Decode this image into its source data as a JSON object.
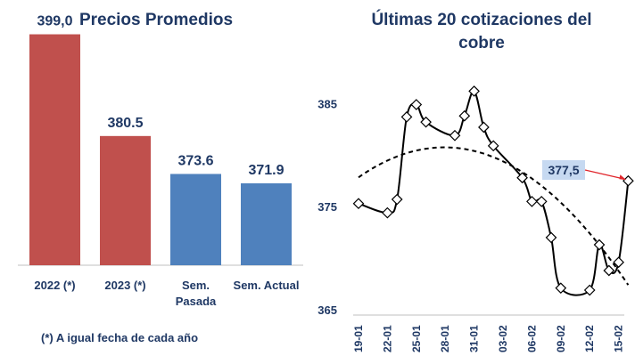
{
  "chart_data": [
    {
      "type": "bar",
      "title": "Precios Promedios",
      "categories": [
        "2022 (*)",
        "2023 (*)",
        "Sem. Pasada",
        "Sem. Actual"
      ],
      "category_lines": [
        [
          "2022 (*)"
        ],
        [
          "2023 (*)"
        ],
        [
          "Sem.",
          "Pasada"
        ],
        [
          "Sem. Actual"
        ]
      ],
      "values": [
        399.0,
        380.5,
        373.6,
        371.9
      ],
      "value_labels": [
        "399,0",
        "380.5",
        "373.6",
        "371.9"
      ],
      "colors": [
        "#c0504d",
        "#c0504d",
        "#4f81bd",
        "#4f81bd"
      ],
      "ylim": [
        357,
        402
      ],
      "footnote": "(*) A igual fecha de cada año"
    },
    {
      "type": "line",
      "title": "Últimas 20 cotizaciones del cobre",
      "title_lines": [
        "Últimas 20 cotizaciones del",
        "cobre"
      ],
      "xlabel": "",
      "ylabel": "",
      "ylim": [
        365,
        389
      ],
      "yticks": [
        365,
        375,
        385
      ],
      "x": [
        "19-01",
        "20-01",
        "21-01",
        "22-01",
        "23-01",
        "24-01",
        "25-01",
        "26-01",
        "27-01",
        "28-01",
        "29-01",
        "30-01",
        "31-01",
        "01-02",
        "02-02",
        "03-02",
        "04-02",
        "05-02",
        "06-02",
        "07-02",
        "08-02",
        "09-02",
        "10-02",
        "11-02",
        "12-02",
        "13-02",
        "14-02",
        "15-02",
        "16-02"
      ],
      "xticks": [
        "19-01",
        "22-01",
        "25-01",
        "28-01",
        "31-01",
        "03-02",
        "06-02",
        "09-02",
        "12-02",
        "15-02"
      ],
      "series": [
        {
          "values": [
            375.3,
            null,
            null,
            374.4,
            375.7,
            383.7,
            384.9,
            383.2,
            null,
            null,
            381.9,
            383.8,
            386.2,
            382.7,
            380.9,
            null,
            null,
            377.8,
            375.5,
            375.5,
            372.0,
            367.1,
            null,
            null,
            366.9,
            371.3,
            368.8,
            369.6,
            377.5
          ],
          "color": "#000000"
        }
      ],
      "trend": {
        "style": "dashed",
        "color": "#000000",
        "type": "polynomial"
      },
      "annotation": {
        "text": "377,5",
        "color": "#e0252b"
      },
      "grid": false
    }
  ]
}
